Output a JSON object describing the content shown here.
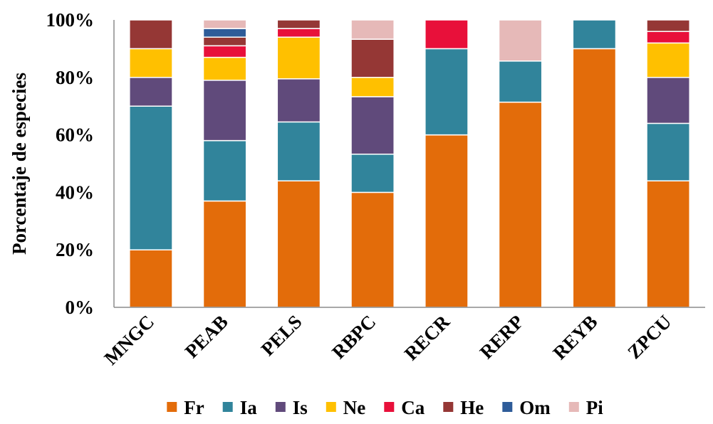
{
  "chart_data": {
    "type": "bar",
    "stacked": "percent",
    "ylabel": "Porcentaje de especies",
    "xlabel": "",
    "ylim": [
      0,
      100
    ],
    "yticks": [
      "0%",
      "20%",
      "40%",
      "60%",
      "80%",
      "100%"
    ],
    "categories": [
      "MNGC",
      "PEAB",
      "PELS",
      "RBPC",
      "RECR",
      "RERP",
      "REYB",
      "ZPCU"
    ],
    "legend_position": "bottom",
    "grid": false,
    "series": [
      {
        "name": "Fr",
        "color": "#E36C0A",
        "values": [
          20,
          37,
          44,
          40,
          60,
          71.4,
          90,
          44
        ]
      },
      {
        "name": "Ia",
        "color": "#31849B",
        "values": [
          50,
          21,
          20.5,
          13.3,
          30,
          14.3,
          10,
          20
        ]
      },
      {
        "name": "Is",
        "color": "#604A7B",
        "values": [
          10,
          21,
          15,
          20,
          0,
          0,
          0,
          16
        ]
      },
      {
        "name": "Ne",
        "color": "#FFC000",
        "values": [
          10,
          8,
          14.5,
          6.7,
          0,
          0,
          0,
          12
        ]
      },
      {
        "name": "Ca",
        "color": "#E8103A",
        "values": [
          0,
          4,
          3,
          0,
          10,
          0,
          0,
          4
        ]
      },
      {
        "name": "He",
        "color": "#953735",
        "values": [
          10,
          3,
          3,
          13.3,
          0,
          0,
          0,
          4
        ]
      },
      {
        "name": "Om",
        "color": "#2E5C99",
        "values": [
          0,
          3,
          0,
          0,
          0,
          0,
          0,
          0
        ]
      },
      {
        "name": "Pi",
        "color": "#E6B9B8",
        "values": [
          0,
          3,
          0,
          6.7,
          0,
          14.3,
          0,
          0
        ]
      }
    ]
  }
}
